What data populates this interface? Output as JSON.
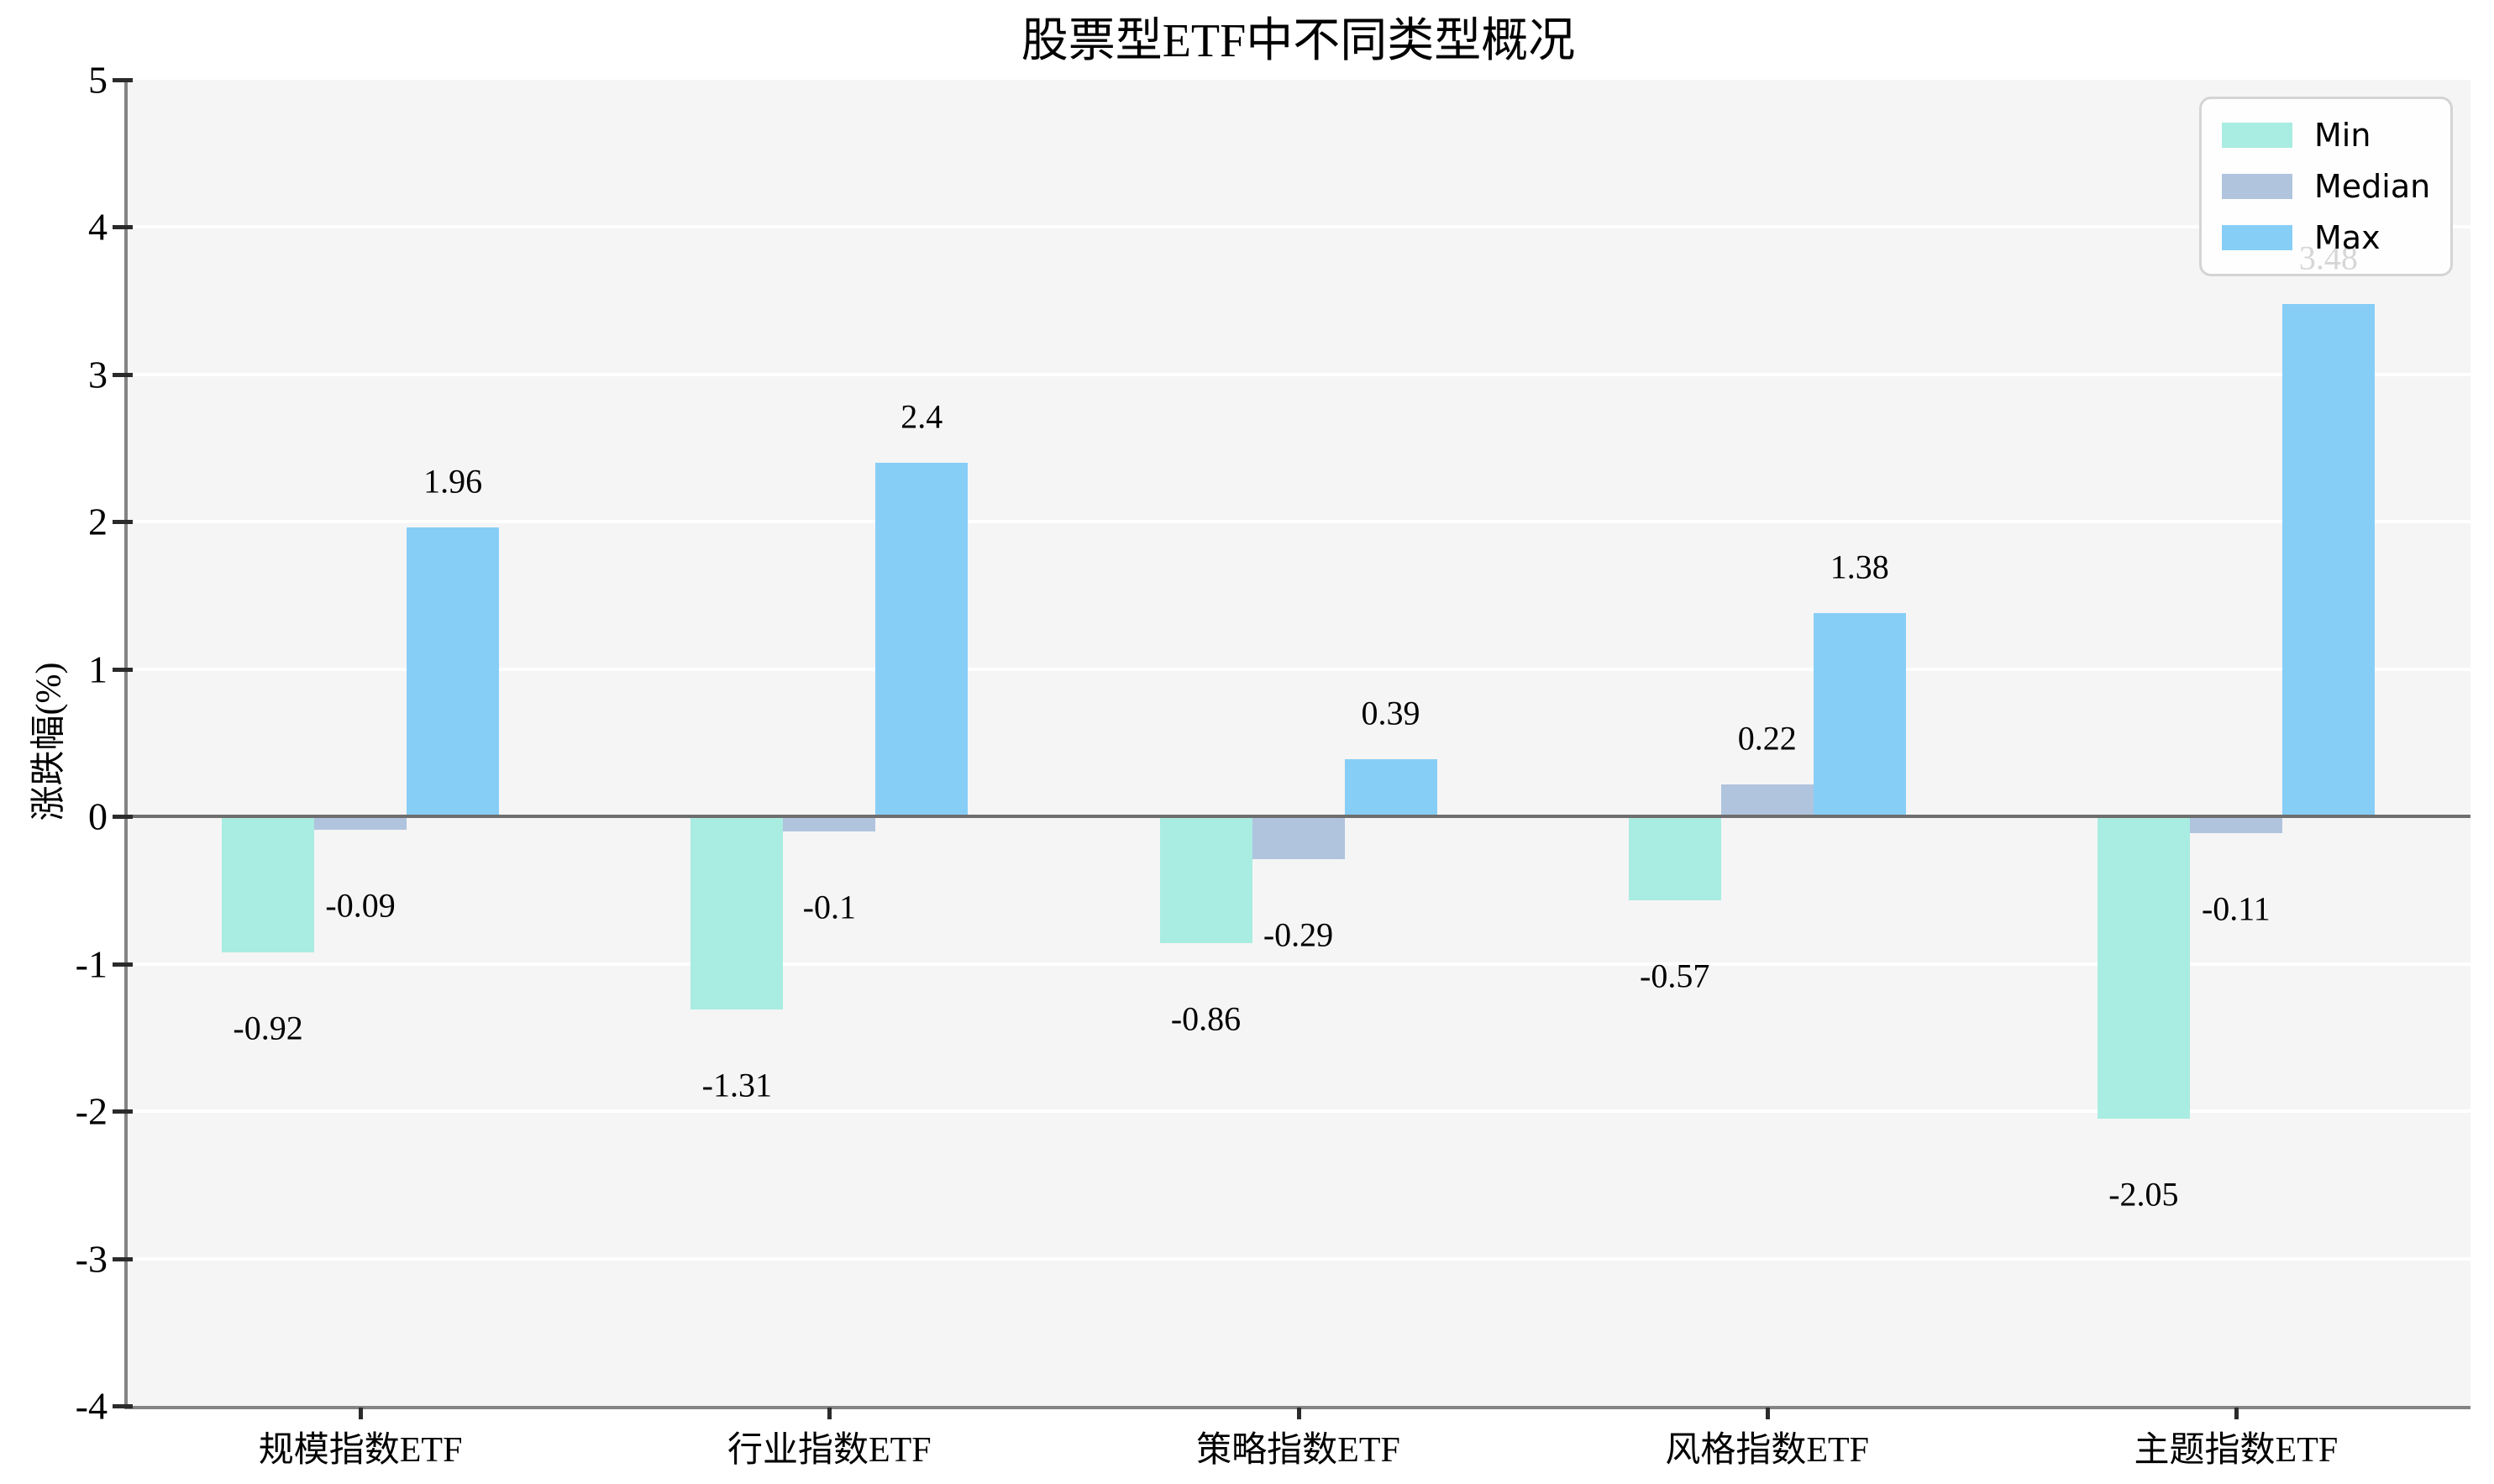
{
  "title": "股票型ETF中不同类型概况",
  "chart_data": {
    "type": "bar",
    "title": "股票型ETF中不同类型概况",
    "ylabel": "涨跌幅(%)",
    "xlabel": "",
    "categories": [
      "规模指数ETF",
      "行业指数ETF",
      "策略指数ETF",
      "风格指数ETF",
      "主题指数ETF"
    ],
    "series": [
      {
        "name": "Min",
        "color": "#a9ece2",
        "values": [
          -0.92,
          -1.31,
          -0.86,
          -0.57,
          -2.05
        ]
      },
      {
        "name": "Median",
        "color": "#b0c4de",
        "values": [
          -0.09,
          -0.1,
          -0.29,
          0.22,
          -0.11
        ]
      },
      {
        "name": "Max",
        "color": "#87cef7",
        "values": [
          1.96,
          2.4,
          0.39,
          1.38,
          3.48
        ]
      }
    ],
    "ylim": [
      -4,
      5
    ],
    "yticks": [
      -4,
      -3,
      -2,
      -1,
      0,
      1,
      2,
      3,
      4,
      5
    ],
    "grid": true,
    "legend_position": "upper right",
    "bar_value_labels": true
  },
  "colors": {
    "figure_background": "#ffffff",
    "plot_background": "#f5f5f5",
    "gridline": "#ffffff",
    "axis_spine": "#848484",
    "zero_line": "#6e6e6e",
    "tick": "#2b2b2b",
    "legend_border": "#d4d4d4",
    "text": "#000000"
  }
}
